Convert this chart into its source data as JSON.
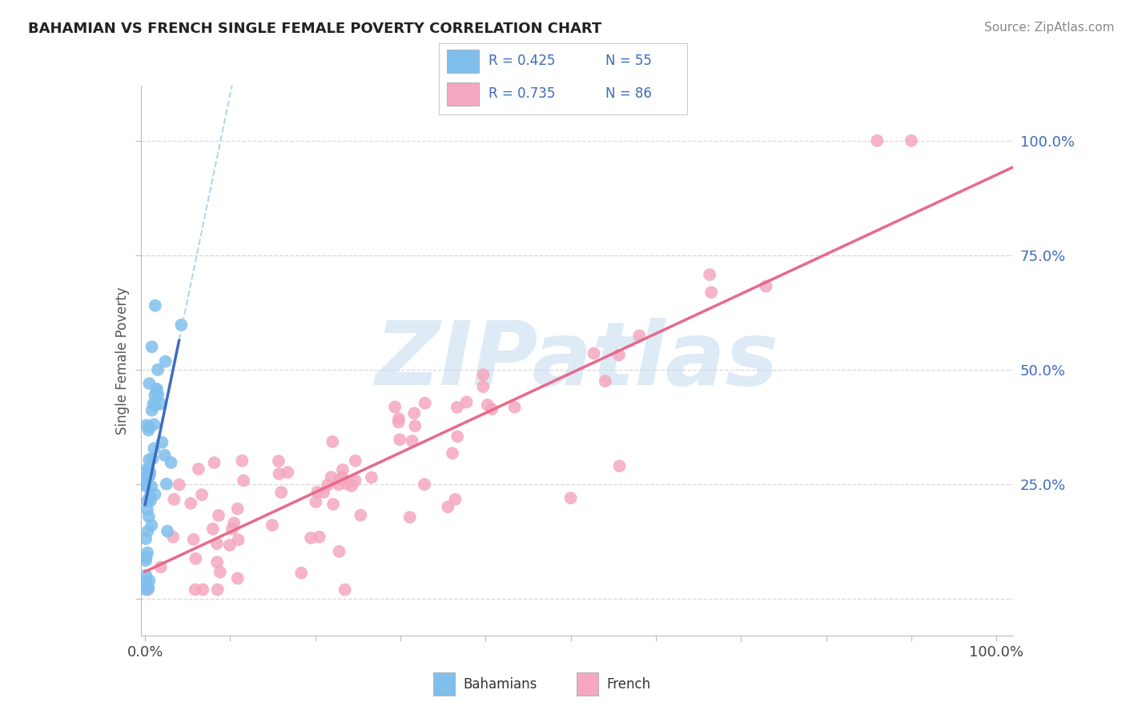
{
  "title": "BAHAMIAN VS FRENCH SINGLE FEMALE POVERTY CORRELATION CHART",
  "source": "Source: ZipAtlas.com",
  "ylabel": "Single Female Poverty",
  "xlim": [
    -0.005,
    1.02
  ],
  "ylim": [
    -0.08,
    1.12
  ],
  "bahamians_R": 0.425,
  "bahamians_N": 55,
  "french_R": 0.735,
  "french_N": 86,
  "bahamian_color": "#7fbfec",
  "french_color": "#f4a7be",
  "bahamian_line_color": "#3d6bbf",
  "french_line_color": "#e8698a",
  "bahamian_dash_color": "#a0c8f0",
  "watermark_color": "#c8ddf0",
  "watermark_text": "ZIPatlas",
  "title_fontsize": 13,
  "legend_text_color": "#3d6bbf",
  "right_axis_color": "#3d6bbf",
  "dot_size": 130
}
